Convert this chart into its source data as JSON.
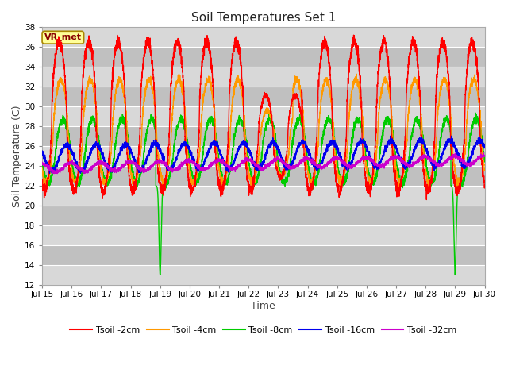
{
  "title": "Soil Temperatures Set 1",
  "xlabel": "Time",
  "ylabel": "Soil Temperature (C)",
  "ylim": [
    12,
    38
  ],
  "yticks": [
    12,
    14,
    16,
    18,
    20,
    22,
    24,
    26,
    28,
    30,
    32,
    34,
    36,
    38
  ],
  "xtick_labels": [
    "Jul 15",
    "Jul 16",
    "Jul 17",
    "Jul 18",
    "Jul 19",
    "Jul 20",
    "Jul 21",
    "Jul 22",
    "Jul 23",
    "Jul 24",
    "Jul 25",
    "Jul 26",
    "Jul 27",
    "Jul 28",
    "Jul 29",
    "Jul 30"
  ],
  "series_colors": {
    "Tsoil -2cm": "#ff0000",
    "Tsoil -4cm": "#ff9900",
    "Tsoil -8cm": "#00cc00",
    "Tsoil -16cm": "#0000ee",
    "Tsoil -32cm": "#cc00cc"
  },
  "bg_color_light": "#d8d8d8",
  "bg_color_dark": "#c0c0c0",
  "grid_color": "#ffffff",
  "annotation_text": "VR_met",
  "annotation_bg": "#ffff99",
  "annotation_border": "#aa8800",
  "fig_bg": "#ffffff"
}
